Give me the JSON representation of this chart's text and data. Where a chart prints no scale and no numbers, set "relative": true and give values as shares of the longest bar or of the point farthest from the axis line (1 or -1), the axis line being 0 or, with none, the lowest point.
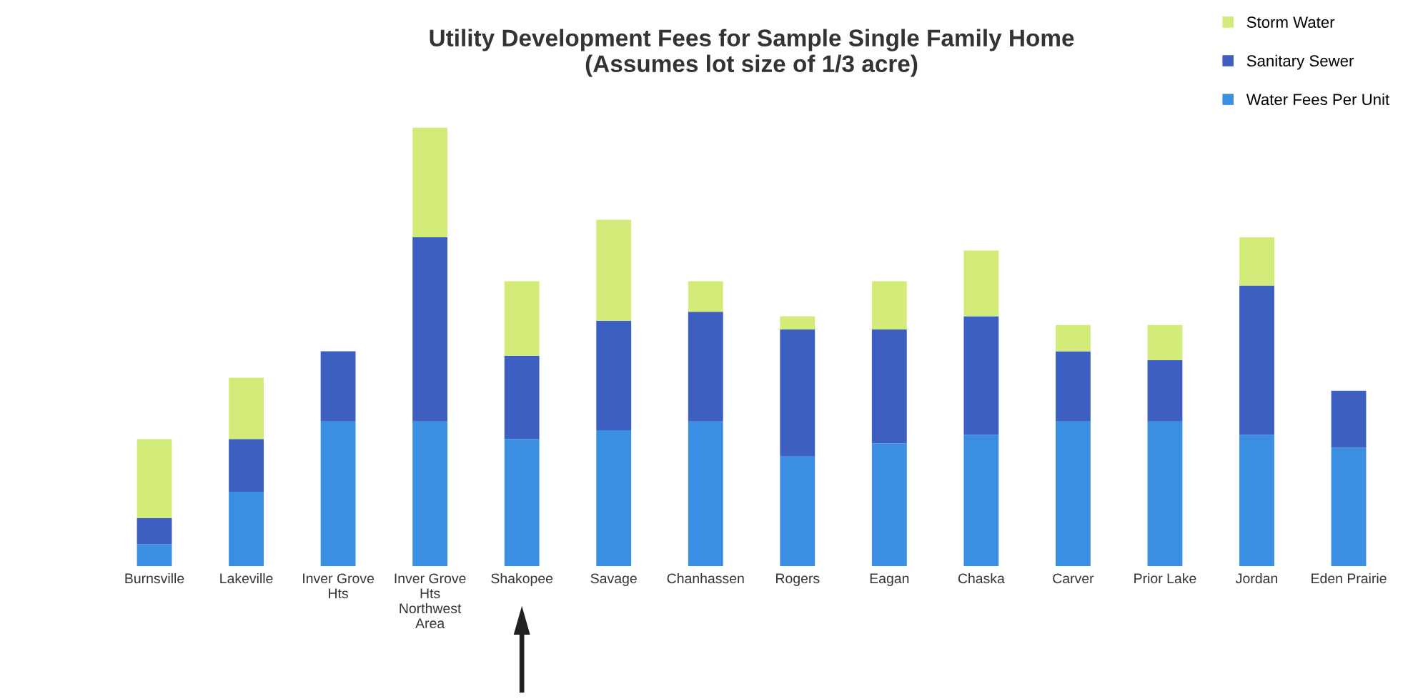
{
  "chart_data": {
    "type": "bar",
    "title": "Utility Development Fees for Sample Single Family Home\n(Assumes lot size of 1/3 acre)",
    "categories": [
      "Burnsville",
      "Lakeville",
      "Inver Grove\nHts",
      "Inver Grove\nHts\nNorthwest\nArea",
      "Shakopee",
      "Savage",
      "Chanhassen",
      "Rogers",
      "Eagan",
      "Chaska",
      "Carver",
      "Prior Lake",
      "Jordan",
      "Eden Prairie"
    ],
    "relative": true,
    "stacked": true,
    "legend": "top right",
    "grid": false,
    "series": [
      {
        "name": "Water Fees Per Unit",
        "color": "#3b8fe2",
        "values": [
          0.05,
          0.17,
          0.33,
          0.33,
          0.29,
          0.31,
          0.33,
          0.25,
          0.28,
          0.3,
          0.33,
          0.33,
          0.3,
          0.27
        ]
      },
      {
        "name": "Sanitary Sewer",
        "color": "#3d5fc2",
        "values": [
          0.06,
          0.12,
          0.16,
          0.42,
          0.19,
          0.25,
          0.25,
          0.29,
          0.26,
          0.27,
          0.16,
          0.14,
          0.34,
          0.13
        ]
      },
      {
        "name": "Storm Water",
        "color": "#d3ec79",
        "values": [
          0.18,
          0.14,
          0,
          0.25,
          0.17,
          0.23,
          0.07,
          0.03,
          0.11,
          0.15,
          0.06,
          0.08,
          0.11,
          0
        ]
      }
    ]
  }
}
